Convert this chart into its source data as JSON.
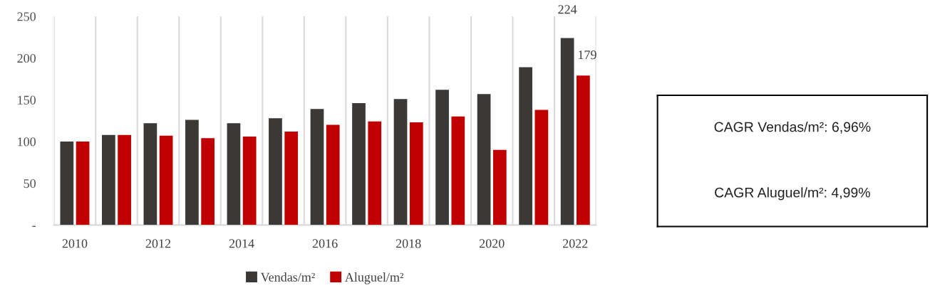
{
  "chart_data": {
    "type": "bar",
    "categories": [
      "2010",
      null,
      "2012",
      null,
      "2014",
      null,
      "2016",
      null,
      "2018",
      null,
      "2020",
      null,
      "2022"
    ],
    "series": [
      {
        "name": "Vendas/m²",
        "color": "#3a3937",
        "values": [
          100,
          108,
          122,
          126,
          122,
          128,
          139,
          146,
          151,
          162,
          157,
          189,
          224
        ],
        "value_labels": [
          null,
          null,
          null,
          null,
          null,
          null,
          null,
          null,
          null,
          null,
          null,
          null,
          "224"
        ]
      },
      {
        "name": "Aluguel/m²",
        "color": "#c00000",
        "values": [
          100,
          108,
          107,
          104,
          106,
          112,
          120,
          124,
          123,
          130,
          90,
          138,
          179
        ],
        "value_labels": [
          null,
          null,
          null,
          null,
          null,
          null,
          null,
          null,
          null,
          null,
          null,
          null,
          "179"
        ]
      }
    ],
    "ylim": [
      0,
      250
    ],
    "yticks": [
      {
        "value": 0,
        "label": "-"
      },
      50,
      100,
      150,
      200,
      250
    ],
    "grid": "x",
    "legend": "bottom",
    "annotations": [
      "CAGR Vendas/m²: 6,96%",
      "CAGR Aluguel/m²: 4,99%"
    ]
  }
}
